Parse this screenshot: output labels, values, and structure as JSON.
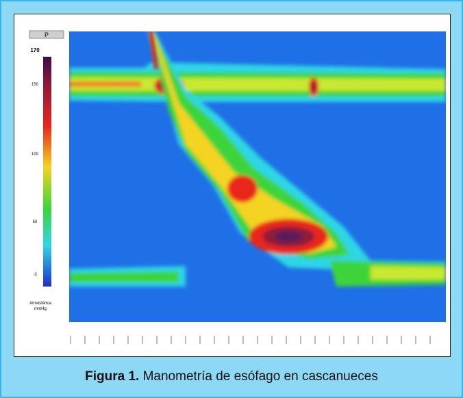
{
  "colorbar": {
    "header": "P",
    "labels": [
      "170",
      "150",
      "100",
      "50",
      "-3"
    ],
    "unit": [
      "Atmosférica",
      "mmHg"
    ]
  },
  "caption": {
    "label": "Figura 1.",
    "text": " Manometría de esófago en cascanueces"
  }
}
